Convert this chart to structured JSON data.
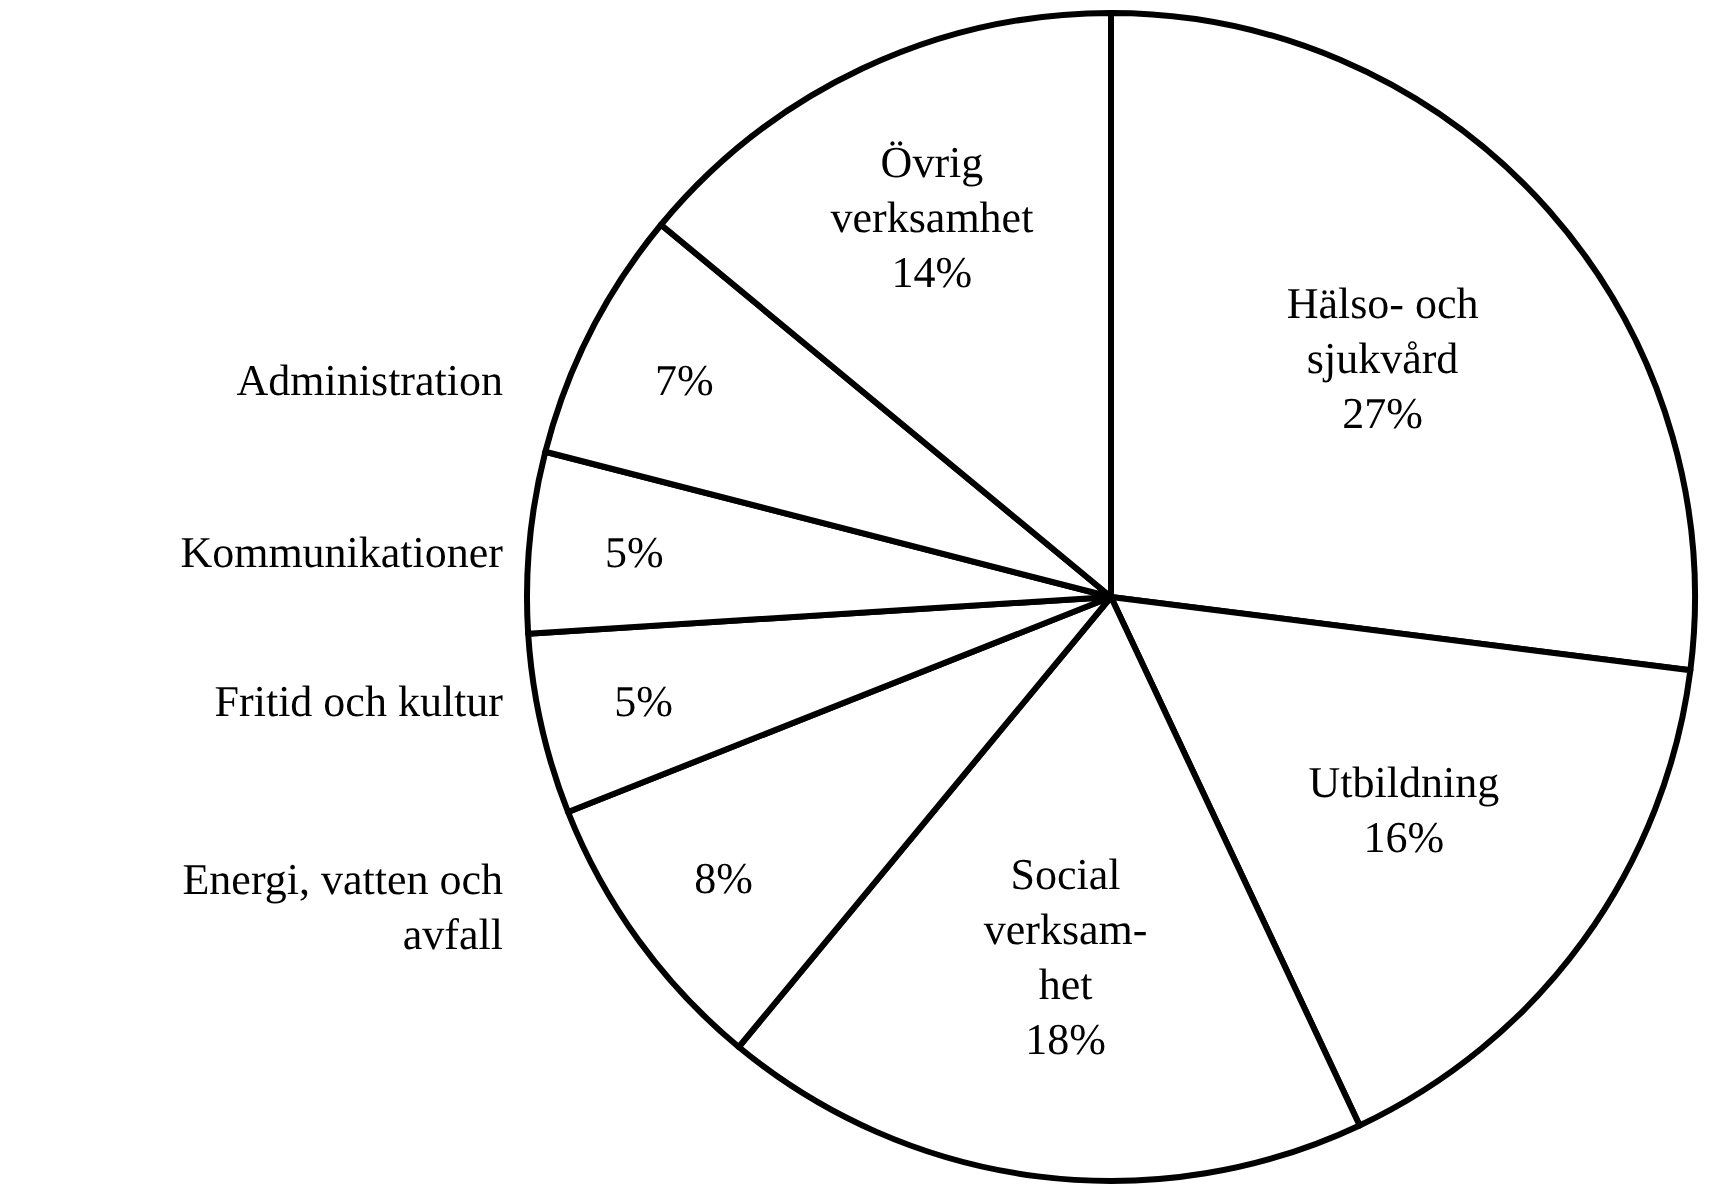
{
  "chart_data": {
    "type": "pie",
    "categories": [
      "Hälso- och\nsjukvård",
      "Utbildning",
      "Social\nverksam-\nhet",
      "Energi, vatten och\navfall",
      "Fritid och kultur",
      "Kommunikationer",
      "Administration",
      "Övrig\nverksamhet"
    ],
    "values": [
      27,
      16,
      18,
      8,
      5,
      5,
      7,
      14
    ],
    "value_labels": [
      "27%",
      "16%",
      "18%",
      "8%",
      "5%",
      "5%",
      "7%",
      "14%"
    ],
    "colors": [
      "#ffffff",
      "#ffffff",
      "#ffffff",
      "#ffffff",
      "#ffffff",
      "#ffffff",
      "#ffffff",
      "#ffffff"
    ]
  }
}
